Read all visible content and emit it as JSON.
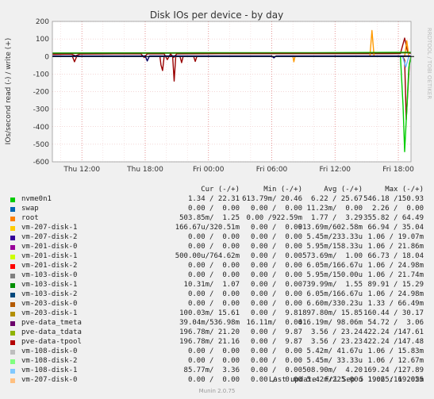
{
  "chart_data": {
    "type": "line",
    "title": "Disk IOs per device - by day",
    "ylabel": "IOs/second read (-) / write (+)",
    "ylim": [
      -600,
      200
    ],
    "yticks": [
      200,
      100,
      0,
      -100,
      -200,
      -300,
      -400,
      -500,
      -600
    ],
    "xticks": [
      {
        "label": "Thu 12:00",
        "t": 2
      },
      {
        "label": "Thu 18:00",
        "t": 8
      },
      {
        "label": "Fri 00:00",
        "t": 14
      },
      {
        "label": "Fri 06:00",
        "t": 20
      },
      {
        "label": "Fri 12:00",
        "t": 26
      },
      {
        "label": "Fri 18:00",
        "t": 32
      }
    ],
    "xlim": [
      -0.8,
      33.2
    ],
    "grid": true,
    "watermark": "RRDTOOL / TOBI OETIKER",
    "series": [
      {
        "name": "pve-data-tpool",
        "color": "#990000",
        "write": [
          [
            -0.8,
            12
          ],
          [
            1,
            14
          ],
          [
            1.4,
            4
          ],
          [
            1.8,
            14
          ],
          [
            5,
            15
          ],
          [
            7.6,
            15
          ],
          [
            7.9,
            -6
          ],
          [
            8.2,
            15
          ],
          [
            9.8,
            15
          ],
          [
            10.1,
            -18
          ],
          [
            10.4,
            15
          ],
          [
            10.7,
            -5
          ],
          [
            11,
            15
          ],
          [
            15,
            16
          ],
          [
            24,
            16
          ],
          [
            29.5,
            17
          ],
          [
            30,
            16
          ],
          [
            31,
            16
          ],
          [
            32.2,
            17
          ],
          [
            32.6,
            105
          ],
          [
            32.9,
            20
          ],
          [
            33.2,
            18
          ]
        ],
        "read": [
          [
            -0.8,
            0
          ],
          [
            1.1,
            0
          ],
          [
            1.3,
            -30
          ],
          [
            1.5,
            0
          ],
          [
            9.4,
            0
          ],
          [
            9.5,
            -48
          ],
          [
            9.65,
            -80
          ],
          [
            9.8,
            0
          ],
          [
            10.6,
            0
          ],
          [
            10.75,
            -140
          ],
          [
            10.9,
            0
          ],
          [
            11.3,
            0
          ],
          [
            11.45,
            -35
          ],
          [
            11.6,
            0
          ],
          [
            12.6,
            0
          ],
          [
            12.75,
            -28
          ],
          [
            12.9,
            0
          ],
          [
            32.4,
            0
          ],
          [
            32.6,
            -20
          ],
          [
            32.75,
            -360
          ],
          [
            32.9,
            -200
          ],
          [
            33.05,
            -40
          ],
          [
            33.2,
            0
          ]
        ]
      },
      {
        "name": "pve-data_tdata",
        "color": "#ff9900",
        "write": [
          [
            -0.8,
            0
          ],
          [
            22,
            0
          ],
          [
            22.1,
            -30
          ],
          [
            22.2,
            0
          ],
          [
            29.3,
            0
          ],
          [
            29.5,
            148
          ],
          [
            29.7,
            0
          ],
          [
            32.6,
            0
          ],
          [
            32.8,
            90
          ],
          [
            33,
            0
          ]
        ],
        "read": []
      },
      {
        "name": "nvme0n1",
        "color": "#00cc00",
        "write": [
          [
            -0.8,
            20
          ],
          [
            10,
            21
          ],
          [
            16,
            22
          ],
          [
            24,
            22
          ],
          [
            28,
            23
          ],
          [
            32,
            24
          ],
          [
            33.2,
            24
          ]
        ],
        "read": [
          [
            -0.8,
            0
          ],
          [
            32.2,
            0
          ],
          [
            32.45,
            -280
          ],
          [
            32.6,
            -542
          ],
          [
            32.8,
            -300
          ],
          [
            33.0,
            -60
          ],
          [
            33.2,
            0
          ]
        ]
      },
      {
        "name": "vm-103-disk-1",
        "color": "#336600",
        "write": [
          [
            -0.8,
            18
          ],
          [
            12,
            19
          ],
          [
            20,
            20
          ],
          [
            28,
            20
          ],
          [
            33.2,
            21
          ]
        ],
        "read": []
      },
      {
        "name": "vm-108-disk-1",
        "color": "#66b3ff",
        "write": [
          [
            -0.8,
            0
          ],
          [
            32.4,
            0
          ],
          [
            32.7,
            -60
          ],
          [
            33,
            0
          ]
        ],
        "read": []
      },
      {
        "name": "vm-201-disk-0",
        "color": "#000066",
        "write": [
          [
            -0.8,
            3
          ],
          [
            8,
            3
          ],
          [
            8.2,
            -25
          ],
          [
            8.4,
            3
          ],
          [
            20,
            3
          ],
          [
            20.2,
            -8
          ],
          [
            20.4,
            3
          ],
          [
            33.2,
            3
          ]
        ],
        "read": []
      }
    ]
  },
  "legend": {
    "headers": {
      "cur": "Cur (-/+)",
      "min": "Min (-/+)",
      "avg": "Avg (-/+)",
      "max": "Max (-/+)"
    },
    "rows": [
      {
        "name": "nvme0n1",
        "color": "#00cc00",
        "cur": "1.34 / 22.31",
        "min": "613.79m/ 20.46",
        "avg": "6.22 / 25.67",
        "max": "546.18 /150.93"
      },
      {
        "name": "swap",
        "color": "#0066b3",
        "cur": "0.00 /  0.00",
        "min": "0.00 /  0.00",
        "avg": "11.23m/  0.00",
        "max": "2.26 /  0.00"
      },
      {
        "name": "root",
        "color": "#ff8000",
        "cur": "503.85m/  1.25",
        "min": "0.00 /922.59m",
        "avg": "1.77 /  3.29",
        "max": "355.82 / 64.49"
      },
      {
        "name": "vm-207-disk-1",
        "color": "#ffcc00",
        "cur": "166.67u/320.51m",
        "min": "0.00 /  0.00",
        "avg": "913.69m/602.58m",
        "max": "66.94 / 35.04"
      },
      {
        "name": "vm-207-disk-2",
        "color": "#330099",
        "cur": "0.00 /  0.00",
        "min": "0.00 /  0.00",
        "avg": "5.45m/233.33u",
        "max": "1.06 / 19.07m"
      },
      {
        "name": "vm-201-disk-0",
        "color": "#990099",
        "cur": "0.00 /  0.00",
        "min": "0.00 /  0.00",
        "avg": "5.95m/158.33u",
        "max": "1.06 / 21.86m"
      },
      {
        "name": "vm-201-disk-1",
        "color": "#ccff00",
        "cur": "500.00u/764.62m",
        "min": "0.00 /  0.00",
        "avg": "573.69m/  1.00",
        "max": "66.73 / 18.04"
      },
      {
        "name": "vm-201-disk-2",
        "color": "#ff0000",
        "cur": "0.00 /  0.00",
        "min": "0.00 /  0.00",
        "avg": "6.05m/166.67u",
        "max": "1.06 / 24.98m"
      },
      {
        "name": "vm-103-disk-0",
        "color": "#808080",
        "cur": "0.00 /  0.00",
        "min": "0.00 /  0.00",
        "avg": "5.95m/150.00u",
        "max": "1.06 / 21.74m"
      },
      {
        "name": "vm-103-disk-1",
        "color": "#008f00",
        "cur": "10.31m/  1.07",
        "min": "0.00 /  0.00",
        "avg": "739.99m/  1.55",
        "max": "89.91 / 15.29"
      },
      {
        "name": "vm-103-disk-2",
        "color": "#00487d",
        "cur": "0.00 /  0.00",
        "min": "0.00 /  0.00",
        "avg": "6.05m/166.67u",
        "max": "1.06 / 24.98m"
      },
      {
        "name": "vm-203-disk-0",
        "color": "#b35a00",
        "cur": "0.00 /  0.00",
        "min": "0.00 /  0.00",
        "avg": "6.60m/330.23u",
        "max": "1.33 / 66.49m"
      },
      {
        "name": "vm-203-disk-1",
        "color": "#b38f00",
        "cur": "100.03m/ 15.61",
        "min": "0.00 /  9.81",
        "avg": "897.80m/ 15.85",
        "max": "160.44 / 30.17"
      },
      {
        "name": "pve-data_tmeta",
        "color": "#6b006b",
        "cur": "39.04m/536.98m",
        "min": "16.11m/  0.00",
        "avg": "416.19m/ 98.06m",
        "max": "54.72 /  3.06"
      },
      {
        "name": "pve-data_tdata",
        "color": "#8fb300",
        "cur": "196.78m/ 21.20",
        "min": "0.00 /  9.87",
        "avg": "3.56 / 23.24",
        "max": "422.24 /147.61"
      },
      {
        "name": "pve-data-tpool",
        "color": "#b30000",
        "cur": "196.78m/ 21.16",
        "min": "0.00 /  9.87",
        "avg": "3.56 / 23.23",
        "max": "422.24 /147.48"
      },
      {
        "name": "vm-108-disk-0",
        "color": "#bebebe",
        "cur": "0.00 /  0.00",
        "min": "0.00 /  0.00",
        "avg": "5.42m/ 41.67u",
        "max": "1.06 / 15.83m"
      },
      {
        "name": "vm-108-disk-2",
        "color": "#80ff80",
        "cur": "0.00 /  0.00",
        "min": "0.00 /  0.00",
        "avg": "5.45m/ 33.33u",
        "max": "1.06 / 12.67m"
      },
      {
        "name": "vm-108-disk-1",
        "color": "#80c9ff",
        "cur": "85.77m/  3.36",
        "min": "0.00 /  0.00",
        "avg": "508.90m/  4.20",
        "max": "169.24 /127.89"
      },
      {
        "name": "vm-207-disk-0",
        "color": "#ffc080",
        "cur": "0.00 /  0.00",
        "min": "0.00 /  0.00",
        "avg": "5.42m/225.00u",
        "max": "1.06 / 19.05m"
      }
    ],
    "last_update": "Last update: Fri Sep  5 19:25:16 2025",
    "footer": "Munin 2.0.75"
  }
}
